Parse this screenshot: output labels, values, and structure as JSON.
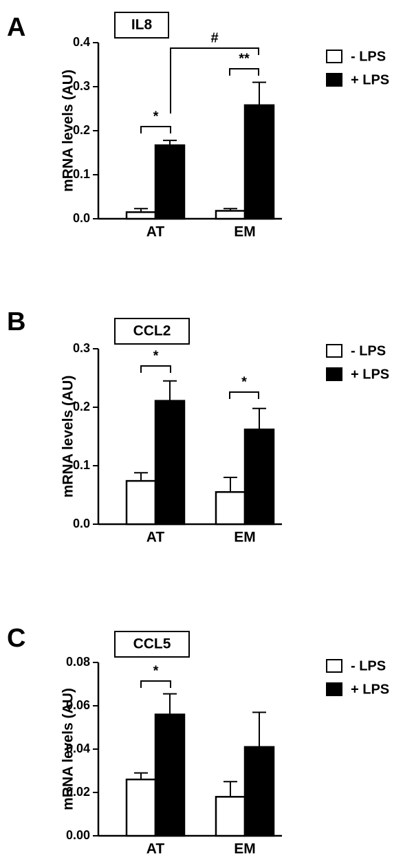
{
  "chart_data": [
    {
      "type": "bar",
      "panel_label": "A",
      "title": "IL8",
      "y_label": "mRNA levels (AU)",
      "categories": [
        "AT",
        "EM"
      ],
      "series": [
        {
          "name": "- LPS",
          "color": "#ffffff",
          "values": [
            0.015,
            0.018
          ],
          "errors": [
            0.008,
            0.005
          ]
        },
        {
          "name": "+ LPS",
          "color": "#000000",
          "values": [
            0.167,
            0.258
          ],
          "errors": [
            0.011,
            0.052
          ]
        }
      ],
      "ylim": [
        0,
        0.4
      ],
      "yticks": [
        {
          "value": 0,
          "label": "0.0"
        },
        0.1,
        0.2,
        0.3,
        0.4
      ],
      "annotations": [
        "*",
        "**",
        "#"
      ]
    },
    {
      "type": "bar",
      "panel_label": "B",
      "title": "CCL2",
      "y_label": "mRNA levels (AU)",
      "categories": [
        "AT",
        "EM"
      ],
      "series": [
        {
          "name": "- LPS",
          "color": "#ffffff",
          "values": [
            0.074,
            0.055
          ],
          "errors": [
            0.014,
            0.025
          ]
        },
        {
          "name": "+ LPS",
          "color": "#000000",
          "values": [
            0.211,
            0.162
          ],
          "errors": [
            0.034,
            0.036
          ]
        }
      ],
      "ylim": [
        0,
        0.3
      ],
      "yticks": [
        {
          "value": 0,
          "label": "0.0"
        },
        0.1,
        0.2,
        0.3
      ],
      "annotations": [
        "*",
        "*"
      ]
    },
    {
      "type": "bar",
      "panel_label": "C",
      "title": "CCL5",
      "y_label": "mRNA levels (AU)",
      "categories": [
        "AT",
        "EM"
      ],
      "series": [
        {
          "name": "- LPS",
          "color": "#ffffff",
          "values": [
            0.026,
            0.018
          ],
          "errors": [
            0.003,
            0.007
          ]
        },
        {
          "name": "+ LPS",
          "color": "#000000",
          "values": [
            0.056,
            0.041
          ],
          "errors": [
            0.0095,
            0.016
          ]
        }
      ],
      "ylim": [
        0,
        0.08
      ],
      "yticks": [
        {
          "value": 0,
          "label": "0.00"
        },
        0.02,
        0.04,
        0.06,
        0.08
      ],
      "annotations": [
        "*"
      ]
    }
  ]
}
